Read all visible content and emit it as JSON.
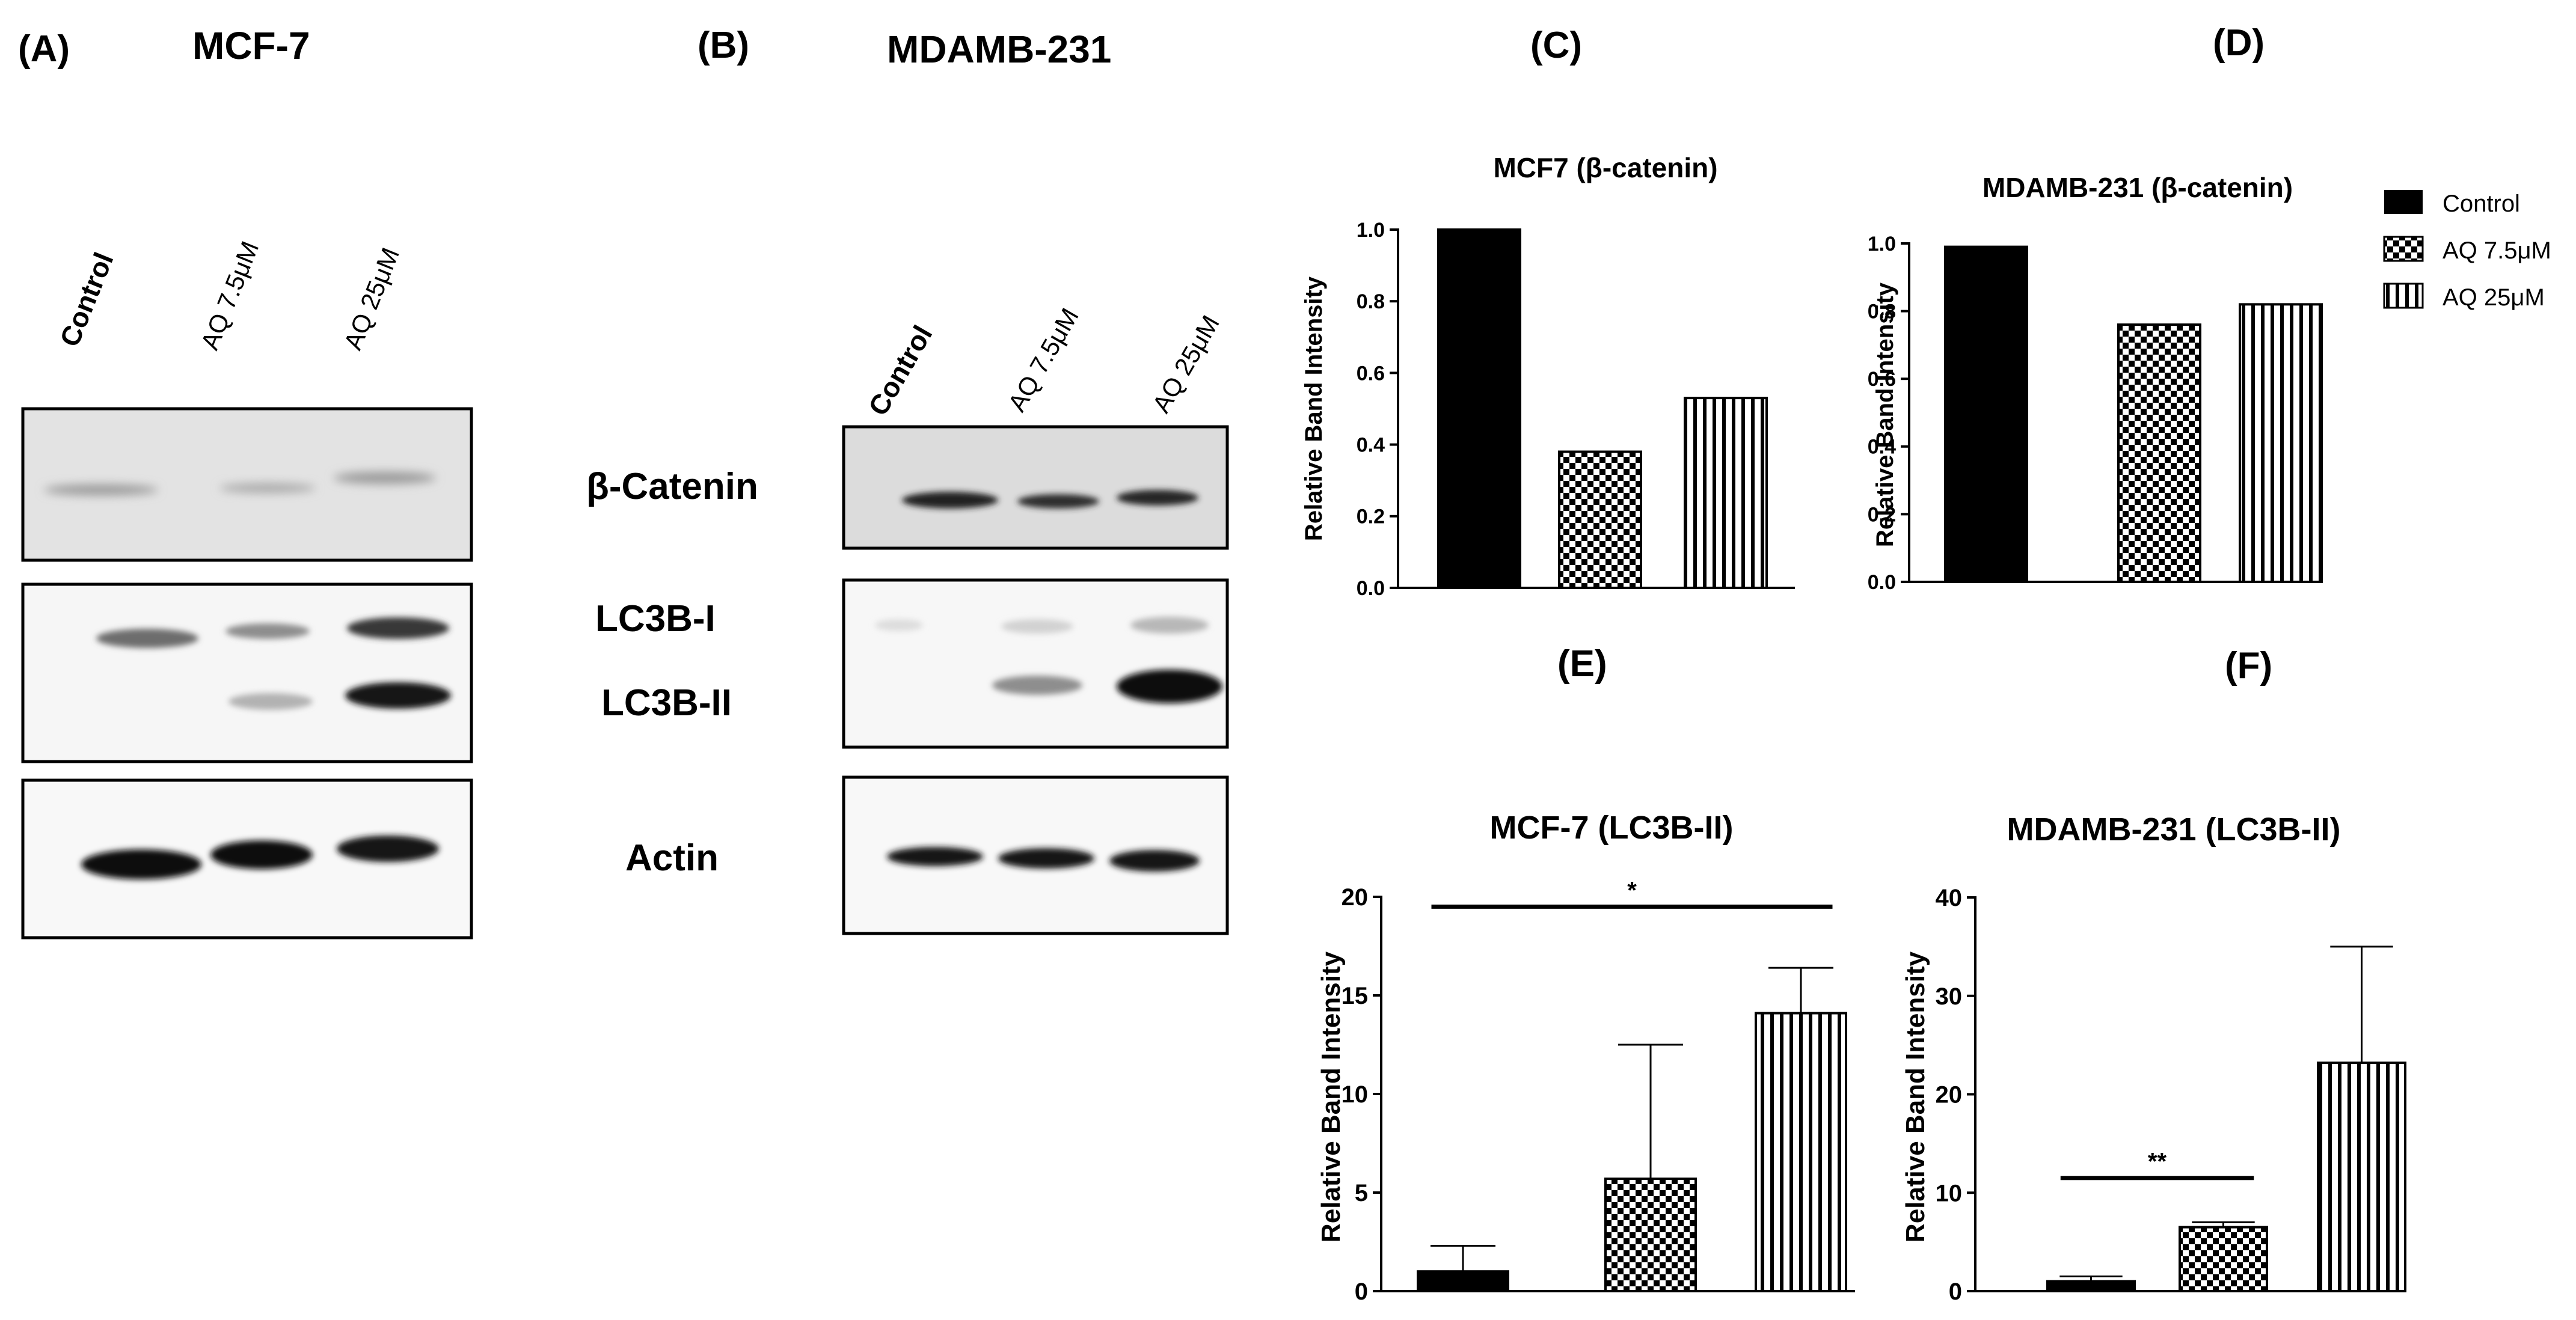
{
  "panel_letters": {
    "a": "(A)",
    "b": "(B)",
    "c": "(C)",
    "d": "(D)",
    "e": "(E)",
    "f": "(F)"
  },
  "blot_a": {
    "title": "MCF-7",
    "lanes": [
      "Control",
      "AQ 7.5μM",
      "AQ 25μM"
    ]
  },
  "blot_b": {
    "title": "MDAMB-231",
    "lanes": [
      "Control",
      "AQ 7.5μM",
      "AQ 25μM"
    ]
  },
  "blot_labels": {
    "beta_catenin": "β-Catenin",
    "lc3b_i": "LC3B-I",
    "lc3b_ii": "LC3B-II",
    "actin": "Actin"
  },
  "legend": {
    "items": [
      {
        "label": "Control",
        "pattern": "solid"
      },
      {
        "label": "AQ 7.5μM",
        "pattern": "checker"
      },
      {
        "label": "AQ 25μM",
        "pattern": "vstripe"
      }
    ]
  },
  "colors": {
    "bar_fill": "#000000",
    "blot_background": "#e4e4e4",
    "band": "#141414"
  },
  "chart_data": [
    {
      "id": "C",
      "type": "bar",
      "title": "MCF7 (β-catenin)",
      "ylabel": "Relative Band Intensity",
      "categories": [
        "Control",
        "AQ 7.5μM",
        "AQ 25μM"
      ],
      "values": [
        1.0,
        0.38,
        0.53
      ],
      "ylim": [
        0,
        1.0
      ],
      "yticks": [
        "0.0",
        "0.2",
        "0.4",
        "0.6",
        "0.8",
        "1.0"
      ],
      "ytick_values": [
        0,
        0.2,
        0.4,
        0.6,
        0.8,
        1.0
      ],
      "grid": false
    },
    {
      "id": "D",
      "type": "bar",
      "title": "MDAMB-231 (β-catenin)",
      "ylabel": "Relative Band Intensity",
      "categories": [
        "Control",
        "AQ 7.5μM",
        "AQ 25μM"
      ],
      "values": [
        0.99,
        0.76,
        0.82
      ],
      "ylim": [
        0,
        1.0
      ],
      "yticks": [
        "0.0",
        "0.2",
        "0.4",
        "0.6",
        "0.8",
        "1.0"
      ],
      "ytick_values": [
        0,
        0.2,
        0.4,
        0.6,
        0.8,
        1.0
      ],
      "grid": false,
      "legend": "top-right"
    },
    {
      "id": "E",
      "type": "bar",
      "title": "MCF-7 (LC3B-II)",
      "ylabel": "Relative Band Intensity",
      "categories": [
        "Control",
        "AQ 7.5μM",
        "AQ 25μM"
      ],
      "values": [
        1.0,
        5.7,
        14.1
      ],
      "error_upper": [
        2.3,
        12.5,
        16.4
      ],
      "ylim": [
        0,
        20
      ],
      "yticks": [
        "0",
        "5",
        "10",
        "15",
        "20"
      ],
      "ytick_values": [
        0,
        5,
        10,
        15,
        20
      ],
      "significance": {
        "label": "*",
        "from": 0,
        "to": 2,
        "y": 19.5
      },
      "grid": false
    },
    {
      "id": "F",
      "type": "bar",
      "title": "MDAMB-231 (LC3B-II)",
      "ylabel": "Relative Band Intensity",
      "categories": [
        "Control",
        "AQ 7.5μM",
        "AQ 25μM"
      ],
      "values": [
        1.0,
        6.5,
        23.2
      ],
      "error_upper": [
        1.5,
        7.0,
        35.0
      ],
      "ylim": [
        0,
        40
      ],
      "yticks": [
        "0",
        "10",
        "20",
        "30",
        "40"
      ],
      "ytick_values": [
        0,
        10,
        20,
        30,
        40
      ],
      "significance": {
        "label": "**",
        "from": 0,
        "to": 1,
        "y": 11.5
      },
      "grid": false
    }
  ]
}
